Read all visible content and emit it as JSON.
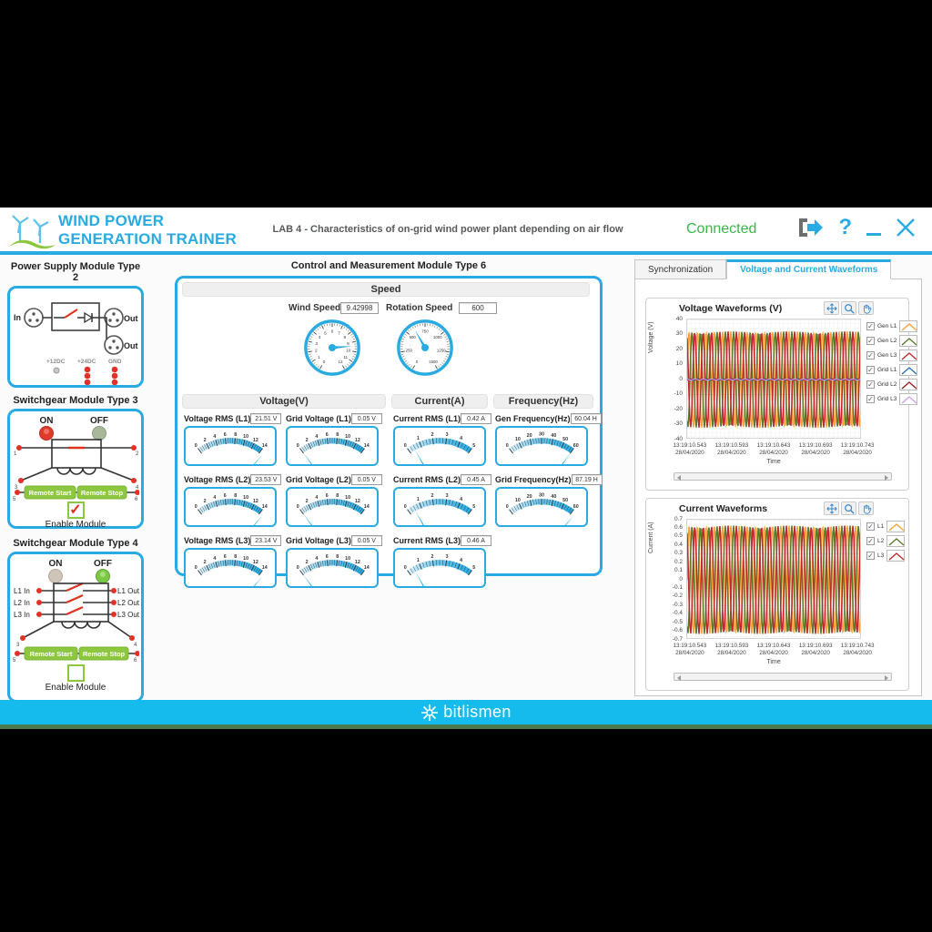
{
  "colors": {
    "accent": "#29ABE2",
    "connected": "#39B54A",
    "button_green": "#8DC63F",
    "lamp_red": "#E23A2A",
    "lamp_green": "#7AC943",
    "footer_blue": "#16BBEE"
  },
  "header": {
    "brand_line1": "WIND POWER",
    "brand_line2": "GENERATION TRAINER",
    "lab_title": "LAB 4 - Characteristics of on-grid wind power plant depending on air flow",
    "status": "Connected",
    "help_label": "?"
  },
  "left_panel": {
    "power_supply": {
      "title": "Power Supply Module Type 2",
      "in_label": "In",
      "out1_label": "Out",
      "out2_label": "Out",
      "rail1": "+12DC",
      "rail2": "+24DC",
      "rail3": "GND"
    },
    "sg3": {
      "title": "Switchgear Module Type 3",
      "on_label": "ON",
      "off_label": "OFF",
      "on_lit": true,
      "off_lit": false,
      "terminals": [
        "1",
        "2",
        "3",
        "4",
        "5",
        "6"
      ],
      "btn_start": "Remote Start",
      "btn_stop": "Remote Stop",
      "enable_label": "Enable Module",
      "enabled": true,
      "check_glyph": "✓"
    },
    "sg4": {
      "title": "Switchgear Module Type 4",
      "on_label": "ON",
      "off_label": "OFF",
      "on_lit": false,
      "off_lit": true,
      "lines_in": [
        "L1 In",
        "L2 In",
        "L3 In"
      ],
      "lines_out": [
        "L1 Out",
        "L2 Out",
        "L3 Out"
      ],
      "terminals": [
        "3",
        "4",
        "5",
        "6"
      ],
      "btn_start": "Remote Start",
      "btn_stop": "Remote Stop",
      "enable_label": "Enable Module",
      "enabled": false,
      "check_glyph": ""
    }
  },
  "center": {
    "title": "Control and Measurement Module Type 6",
    "speed": {
      "header": "Speed",
      "wind": {
        "label": "Wind Speed",
        "value": "9.42998",
        "num": 9.42998,
        "min": 0,
        "max": 12,
        "step": 1
      },
      "rotation": {
        "label": "Rotation Speed",
        "value": "600",
        "num": 600,
        "min": 0,
        "max": 1500,
        "step": 250
      }
    },
    "sections": {
      "voltage": "Voltage(V)",
      "current": "Current(A)",
      "frequency": "Frequency(Hz)"
    },
    "meters": {
      "v1": {
        "label": "Voltage RMS (L1)",
        "value": "21.51 V",
        "num": 21.51,
        "min": 0,
        "max": 14,
        "step": 2
      },
      "g1": {
        "label": "Grid Voltage (L1)",
        "value": "0.05 V",
        "num": 0.05,
        "min": 0,
        "max": 14,
        "step": 2
      },
      "v2": {
        "label": "Voltage RMS (L2)",
        "value": "23.53 V",
        "num": 23.53,
        "min": 0,
        "max": 14,
        "step": 2
      },
      "g2": {
        "label": "Grid Voltage (L2)",
        "value": "0.05 V",
        "num": 0.05,
        "min": 0,
        "max": 14,
        "step": 2
      },
      "v3": {
        "label": "Voltage RMS (L3)",
        "value": "23.14 V",
        "num": 23.14,
        "min": 0,
        "max": 14,
        "step": 2
      },
      "g3": {
        "label": "Grid Voltage (L3)",
        "value": "0.05 V",
        "num": 0.05,
        "min": 0,
        "max": 14,
        "step": 2
      },
      "c1": {
        "label": "Current RMS (L1)",
        "value": "0.42 A",
        "num": 0.42,
        "min": 0,
        "max": 5,
        "step": 1
      },
      "c2": {
        "label": "Current RMS (L2)",
        "value": "0.45 A",
        "num": 0.45,
        "min": 0,
        "max": 5,
        "step": 1
      },
      "c3": {
        "label": "Current RMS (L3)",
        "value": "0.46 A",
        "num": 0.46,
        "min": 0,
        "max": 5,
        "step": 1
      },
      "f1": {
        "label": "Gen Frequency(Hz)",
        "value": "60.04 H",
        "num": 60.04,
        "min": 0,
        "max": 60,
        "step": 10
      },
      "f2": {
        "label": "Grid Frequency(Hz)",
        "value": "87.19 H",
        "num": 87.19,
        "min": 0,
        "max": 60,
        "step": 10
      }
    }
  },
  "right_panel": {
    "tabs": [
      {
        "label": "Synchronization",
        "active": false
      },
      {
        "label": "Voltage and Current Waveforms",
        "active": true
      }
    ]
  },
  "chart_data": [
    {
      "type": "line",
      "title": "Voltage Waveforms (V)",
      "ylabel": "Voltage (V)",
      "xlabel": "Time",
      "ylim": [
        -40,
        40
      ],
      "ytick": 10,
      "ydecimals": 0,
      "grid": true,
      "legend_position": "right",
      "cycles": 21,
      "x_ticks": [
        [
          "13:19:10.543",
          "28/04/2020"
        ],
        [
          "13:19:10.593",
          "28/04/2020"
        ],
        [
          "13:19:10.643",
          "28/04/2020"
        ],
        [
          "13:19:10.693",
          "28/04/2020"
        ],
        [
          "13:19:10.743",
          "28/04/2020"
        ]
      ],
      "series": [
        {
          "name": "Gen L1",
          "color": "#F9A03C",
          "amplitude": 32,
          "phase_deg": 0,
          "checked": true
        },
        {
          "name": "Gen L2",
          "color": "#5A7A28",
          "amplitude": 32,
          "phase_deg": -120,
          "checked": true
        },
        {
          "name": "Gen L3",
          "color": "#C1272D",
          "amplitude": 32,
          "phase_deg": 120,
          "checked": true
        },
        {
          "name": "Grid L1",
          "color": "#2A6FB0",
          "amplitude": 0.6,
          "phase_deg": 0,
          "checked": true
        },
        {
          "name": "Grid L2",
          "color": "#9E1B1B",
          "amplitude": 0.4,
          "phase_deg": -120,
          "checked": true
        },
        {
          "name": "Grid L3",
          "color": "#C9A0E9",
          "amplitude": 0.3,
          "phase_deg": 120,
          "checked": true
        }
      ]
    },
    {
      "type": "line",
      "title": "Current Waveforms",
      "ylabel": "Current (A)",
      "xlabel": "Time",
      "ylim": [
        -0.7,
        0.7
      ],
      "ytick": 0.1,
      "ydecimals": 1,
      "grid": true,
      "legend_position": "right",
      "cycles": 21,
      "x_ticks": [
        [
          "13:19:10.543",
          "28/04/2020"
        ],
        [
          "13:19:10.593",
          "28/04/2020"
        ],
        [
          "13:19:10.643",
          "28/04/2020"
        ],
        [
          "13:19:10.693",
          "28/04/2020"
        ],
        [
          "13:19:10.743",
          "28/04/2020"
        ]
      ],
      "series": [
        {
          "name": "L1",
          "color": "#F9A03C",
          "amplitude": 0.63,
          "phase_deg": 0,
          "checked": true
        },
        {
          "name": "L2",
          "color": "#5A7A28",
          "amplitude": 0.63,
          "phase_deg": -120,
          "checked": true
        },
        {
          "name": "L3",
          "color": "#C1272D",
          "amplitude": 0.63,
          "phase_deg": 120,
          "checked": true
        }
      ]
    }
  ],
  "footer": {
    "brand": "bitlismen"
  }
}
